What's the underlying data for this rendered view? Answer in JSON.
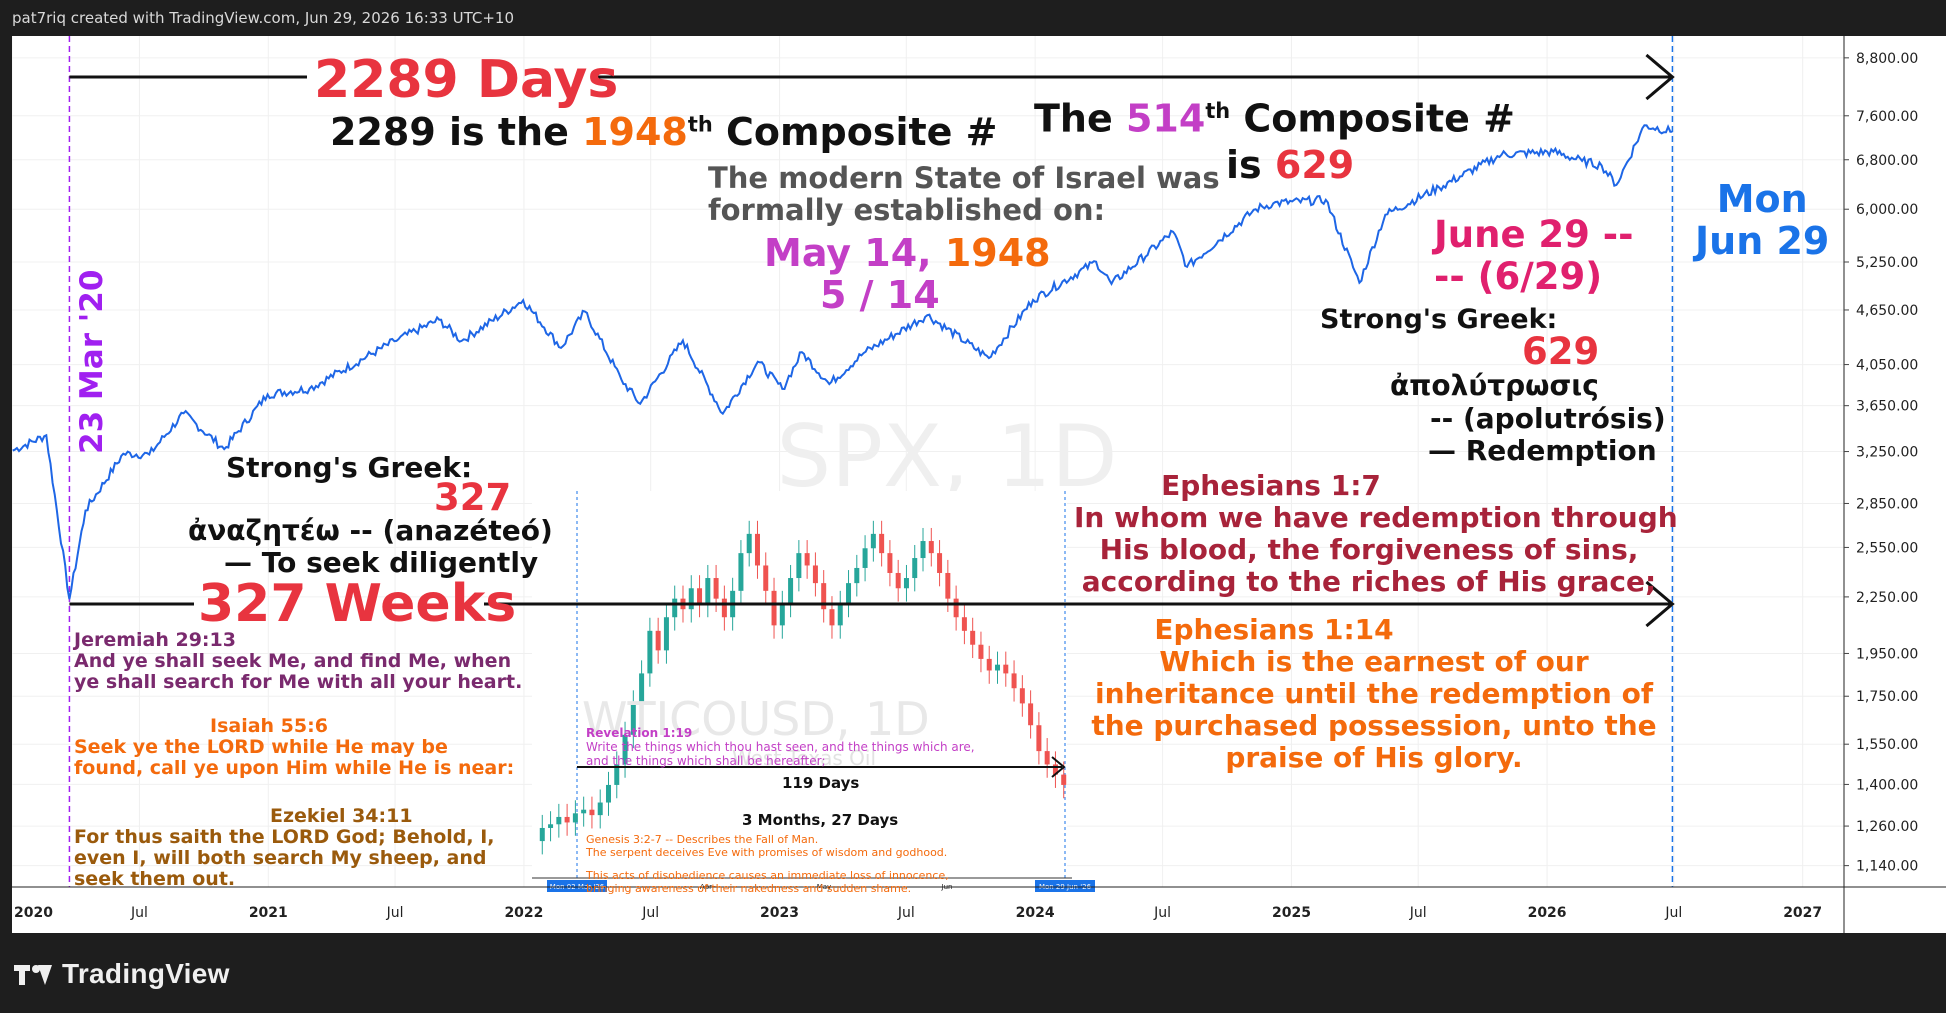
{
  "header": {
    "credit": "pat7riq created with TradingView.com, Jun 29, 2026 16:33 UTC+10"
  },
  "footer": {
    "brand": "TradingView",
    "logo_icon": "tradingview-logo-icon"
  },
  "colors": {
    "line": "#1e66e6",
    "purple": "#a020f0",
    "red": "#e8343f",
    "orange": "#f46a0c",
    "magenta": "#c33fc6",
    "pink": "#e0206e",
    "blue": "#1a73e8",
    "darkred": "#a8233a",
    "gray": "#555555",
    "scripture_purple": "#7a2a6e",
    "up": "#26a69a",
    "down": "#ef5350"
  },
  "chart_data": [
    {
      "type": "line",
      "symbol_watermark": "SPX, 1D",
      "x_ticks": [
        "2020",
        "Jul",
        "2021",
        "Jul",
        "2022",
        "Jul",
        "2023",
        "Jul",
        "2024",
        "Jul",
        "2025",
        "Jul",
        "2026",
        "Jul",
        "2027"
      ],
      "y_ticks": [
        "8,800.00",
        "7,600.00",
        "6,800.00",
        "6,000.00",
        "5,250.00",
        "4,650.00",
        "4,050.00",
        "3,650.00",
        "3,250.00",
        "2,850.00",
        "2,550.00",
        "2,250.00",
        "1,950.00",
        "1,750.00",
        "1,550.00",
        "1,400.00",
        "1,260.00",
        "1,140.00"
      ],
      "y_scale": "log",
      "x_range": [
        "2020-01-01",
        "2027-03-01"
      ],
      "y_range": [
        1080,
        9300
      ],
      "series": [
        {
          "x": [
            "2020-01-02",
            "2020-02-19",
            "2020-03-23",
            "2020-04-15",
            "2020-06-08",
            "2020-07-15",
            "2020-09-02",
            "2020-10-30",
            "2020-12-31",
            "2021-03-01",
            "2021-06-30",
            "2021-09-02",
            "2021-10-04",
            "2021-12-31",
            "2022-02-23",
            "2022-03-29",
            "2022-05-20",
            "2022-06-16",
            "2022-08-16",
            "2022-10-12",
            "2022-12-01",
            "2023-01-05",
            "2023-02-02",
            "2023-03-13",
            "2023-05-01",
            "2023-07-31",
            "2023-10-27",
            "2023-12-29",
            "2024-03-28",
            "2024-04-19",
            "2024-07-16",
            "2024-08-05",
            "2024-11-11",
            "2024-12-06",
            "2025-02-19",
            "2025-04-08",
            "2025-05-15",
            "2025-07-31",
            "2025-10-28",
            "2026-01-10",
            "2026-02-20",
            "2026-03-20",
            "2026-04-10",
            "2026-05-20",
            "2026-06-29"
          ],
          "y": [
            3258,
            3386,
            2237,
            2800,
            3232,
            3226,
            3580,
            3270,
            3756,
            3811,
            4297,
            4537,
            4300,
            4766,
            4225,
            4632,
            3901,
            3667,
            4305,
            3577,
            4080,
            3808,
            4179,
            3855,
            4169,
            4589,
            4117,
            4770,
            5254,
            4967,
            5667,
            5186,
            6001,
            6090,
            6144,
            4982,
            5917,
            6339,
            6890,
            6940,
            6780,
            6700,
            6380,
            7420,
            7300
          ]
        }
      ]
    },
    {
      "type": "candlestick",
      "symbol_watermark": "WTICOUSD, 1D",
      "subtitle": "West Texas Oil",
      "x_ticks": [
        "Mon 02 Mar '26",
        "Apr",
        "May",
        "Jun",
        "Mon 29 Jun '26"
      ]
    }
  ],
  "annotations": {
    "marker_left": "23 Mar '20",
    "marker_right_line1": "Mon",
    "marker_right_line2": "Jun 29",
    "days_label": "2289 Days",
    "composite_line_pre": "2289 is the ",
    "composite_num": "1948",
    "composite_sup": "th",
    "composite_post": " Composite #",
    "right_the": "The ",
    "right_num": "514",
    "right_sup": "th",
    "right_post": " Composite #",
    "right_is": "is ",
    "right_629": "629",
    "israel_line1": "The modern State of Israel was",
    "israel_line2": "formally established on:",
    "may_pre": "May 14, ",
    "may_year": "1948",
    "may_line2": "5 / 14",
    "june_line1": "June 29 --",
    "june_line2": "--  (6/29)",
    "strongs_right": "Strong's Greek:",
    "strongs_right_num": "629",
    "greek_right": "ἀπολύτρωσις",
    "greek_right_translit": "-- (apolutrósis)",
    "greek_right_meaning": "— Redemption",
    "strongs_left": "Strong's Greek:",
    "strongs_left_num": "327",
    "greek_left": "ἀναζητέω -- (anazéteó)",
    "greek_left_meaning": "— To seek diligently",
    "weeks_label": "327 Weeks",
    "jer_ref": "Jeremiah 29:13",
    "jer_line1": "And ye shall seek Me, and find Me, when",
    "jer_line2": "ye shall search for Me with all your heart.",
    "isa_ref": "Isaiah 55:6",
    "isa_line1": "Seek ye the LORD while He may be",
    "isa_line2": "found, call ye upon Him while He is near:",
    "eze_ref": "Ezekiel 34:11",
    "eze_line1": "For thus saith the LORD God; Behold, I,",
    "eze_line2": "even I, will both search My sheep, and",
    "eze_line3": "seek them out.",
    "eph17_ref": "Ephesians 1:7",
    "eph17_line1": "In whom we have redemption through",
    "eph17_line2": "His blood, the forgiveness of sins,",
    "eph17_line3": "according to the riches of His grace;",
    "eph114_ref": "Ephesians 1:14",
    "eph114_line1": "Which is the earnest of our",
    "eph114_line2": "inheritance until the redemption of",
    "eph114_line3": "the purchased possession, unto the",
    "eph114_line4": "praise of His glory.",
    "rev_ref": "Revelation 1:19",
    "rev_line1": "Write the things which thou hast seen, and the things which are,",
    "rev_line2": "and the things which shall be hereafter;",
    "inset_days": "119 Days",
    "inset_months": "3 Months, 27 Days",
    "gen_line1": "Genesis 3:2-7 -- Describes the Fall of Man.",
    "gen_line2": "The serpent deceives Eve with promises of wisdom and godhood.",
    "gen_line3": "This acts of disobedience causes an immediate loss of innocence,",
    "gen_line4": "bringing awareness of their nakedness and sudden shame."
  }
}
